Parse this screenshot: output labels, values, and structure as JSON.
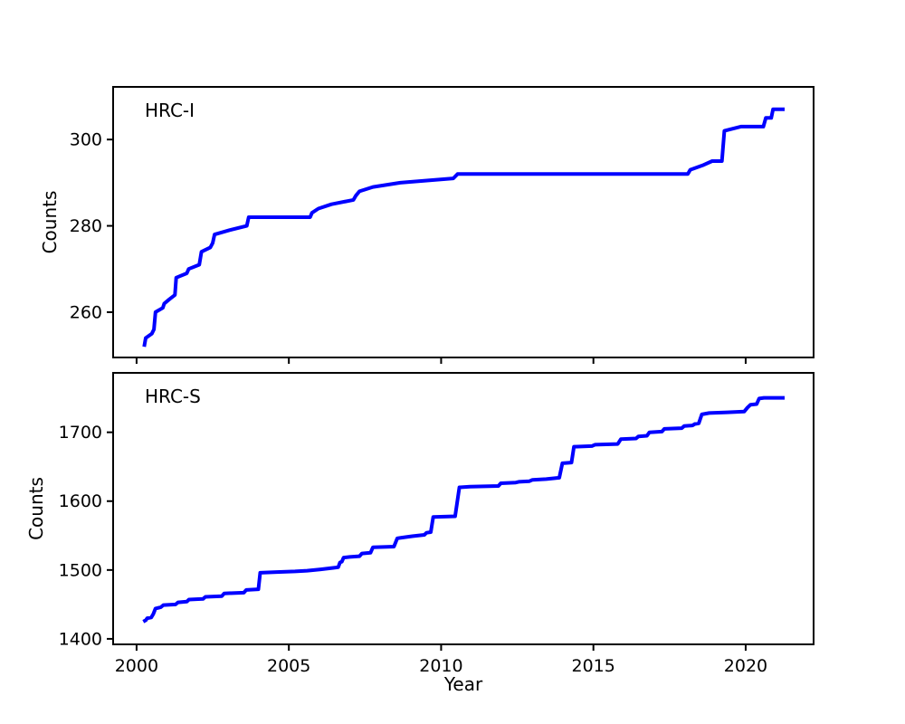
{
  "figure": {
    "background": "#ffffff",
    "text_color": "#000000",
    "line_color": "#0000ff",
    "line_width": 4,
    "xlabel": "Year",
    "xticks": [
      2000,
      2005,
      2010,
      2015,
      2020
    ],
    "xlim": [
      1999.23,
      2022.23
    ],
    "grid": false,
    "legend": false
  },
  "chart_data": [
    {
      "type": "line",
      "style": "cumulative-step",
      "title": "HRC-I",
      "ylabel": "Counts",
      "yticks": [
        260,
        280,
        300
      ],
      "ylim": [
        249.5,
        312.2
      ],
      "show_x_tick_labels": false,
      "series": [
        {
          "name": "HRC-I cumulative counts",
          "color": "#0000ff",
          "points": [
            [
              2000.25,
              252
            ],
            [
              2000.3,
              254
            ],
            [
              2000.5,
              255
            ],
            [
              2000.57,
              256
            ],
            [
              2000.62,
              260
            ],
            [
              2000.86,
              261
            ],
            [
              2000.91,
              262
            ],
            [
              2001.08,
              263
            ],
            [
              2001.26,
              264
            ],
            [
              2001.3,
              268
            ],
            [
              2001.65,
              269
            ],
            [
              2001.71,
              270
            ],
            [
              2002.06,
              271
            ],
            [
              2002.13,
              274
            ],
            [
              2002.42,
              275
            ],
            [
              2002.5,
              276
            ],
            [
              2002.56,
              278
            ],
            [
              2003.05,
              279
            ],
            [
              2003.62,
              280
            ],
            [
              2003.68,
              282
            ],
            [
              2005.7,
              282
            ],
            [
              2005.76,
              283
            ],
            [
              2005.97,
              284
            ],
            [
              2006.4,
              285
            ],
            [
              2007.12,
              286
            ],
            [
              2007.2,
              287
            ],
            [
              2007.32,
              288
            ],
            [
              2007.76,
              289
            ],
            [
              2008.66,
              290
            ],
            [
              2010.4,
              291
            ],
            [
              2010.54,
              292
            ],
            [
              2018.1,
              292
            ],
            [
              2018.18,
              293
            ],
            [
              2018.58,
              294
            ],
            [
              2018.9,
              295
            ],
            [
              2019.22,
              295
            ],
            [
              2019.3,
              302
            ],
            [
              2019.84,
              303
            ],
            [
              2020.58,
              303
            ],
            [
              2020.66,
              305
            ],
            [
              2020.84,
              305
            ],
            [
              2020.9,
              307
            ],
            [
              2021.28,
              307
            ]
          ]
        }
      ]
    },
    {
      "type": "line",
      "style": "cumulative-step",
      "title": "HRC-S",
      "ylabel": "Counts",
      "yticks": [
        1400,
        1500,
        1600,
        1700
      ],
      "ylim": [
        1392,
        1786.3
      ],
      "show_x_tick_labels": true,
      "series": [
        {
          "name": "HRC-S cumulative counts",
          "color": "#0000ff",
          "points": [
            [
              2000.22,
              1425
            ],
            [
              2000.3,
              1427
            ],
            [
              2000.35,
              1430
            ],
            [
              2000.48,
              1431
            ],
            [
              2000.55,
              1436
            ],
            [
              2000.62,
              1444
            ],
            [
              2000.8,
              1446
            ],
            [
              2000.88,
              1449
            ],
            [
              2001.28,
              1450
            ],
            [
              2001.36,
              1453
            ],
            [
              2001.65,
              1454
            ],
            [
              2001.72,
              1457
            ],
            [
              2002.18,
              1458
            ],
            [
              2002.26,
              1461
            ],
            [
              2002.8,
              1462
            ],
            [
              2002.88,
              1466
            ],
            [
              2003.52,
              1467
            ],
            [
              2003.6,
              1471
            ],
            [
              2004.0,
              1472
            ],
            [
              2004.06,
              1496
            ],
            [
              2004.6,
              1497
            ],
            [
              2005.2,
              1498
            ],
            [
              2005.6,
              1499
            ],
            [
              2006.05,
              1501
            ],
            [
              2006.45,
              1503
            ],
            [
              2006.62,
              1504
            ],
            [
              2006.68,
              1511
            ],
            [
              2006.74,
              1512
            ],
            [
              2006.8,
              1518
            ],
            [
              2007.0,
              1519
            ],
            [
              2007.32,
              1520
            ],
            [
              2007.4,
              1524
            ],
            [
              2007.68,
              1525
            ],
            [
              2007.76,
              1533
            ],
            [
              2008.45,
              1534
            ],
            [
              2008.56,
              1546
            ],
            [
              2008.7,
              1547
            ],
            [
              2009.05,
              1549
            ],
            [
              2009.45,
              1551
            ],
            [
              2009.52,
              1554
            ],
            [
              2009.66,
              1555
            ],
            [
              2009.74,
              1577
            ],
            [
              2010.46,
              1578
            ],
            [
              2010.6,
              1620
            ],
            [
              2010.95,
              1621
            ],
            [
              2011.88,
              1622
            ],
            [
              2011.96,
              1626
            ],
            [
              2012.45,
              1627
            ],
            [
              2012.55,
              1628
            ],
            [
              2012.9,
              1629
            ],
            [
              2013.0,
              1631
            ],
            [
              2013.45,
              1632
            ],
            [
              2013.88,
              1634
            ],
            [
              2013.98,
              1655
            ],
            [
              2014.28,
              1656
            ],
            [
              2014.36,
              1679
            ],
            [
              2014.95,
              1680
            ],
            [
              2015.05,
              1682
            ],
            [
              2015.8,
              1683
            ],
            [
              2015.9,
              1690
            ],
            [
              2016.4,
              1691
            ],
            [
              2016.48,
              1694
            ],
            [
              2016.76,
              1695
            ],
            [
              2016.84,
              1700
            ],
            [
              2017.25,
              1701
            ],
            [
              2017.33,
              1705
            ],
            [
              2017.9,
              1706
            ],
            [
              2017.98,
              1709
            ],
            [
              2018.25,
              1710
            ],
            [
              2018.33,
              1712
            ],
            [
              2018.46,
              1713
            ],
            [
              2018.56,
              1726
            ],
            [
              2018.8,
              1728
            ],
            [
              2019.4,
              1729
            ],
            [
              2019.95,
              1730
            ],
            [
              2020.06,
              1736
            ],
            [
              2020.16,
              1740
            ],
            [
              2020.36,
              1741
            ],
            [
              2020.44,
              1749
            ],
            [
              2020.6,
              1750
            ],
            [
              2021.28,
              1750
            ]
          ]
        }
      ]
    }
  ]
}
